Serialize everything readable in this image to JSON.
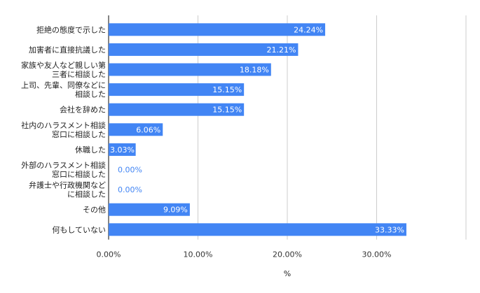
{
  "chart_data": {
    "type": "bar",
    "orientation": "horizontal",
    "categories": [
      [
        "拒絶の態度で示した"
      ],
      [
        "加害者に直接抗議した"
      ],
      [
        "家族や友人など親しい第",
        "三者に相談した"
      ],
      [
        "上司、先輩、同僚などに",
        "相談した"
      ],
      [
        "会社を辞めた"
      ],
      [
        "社内のハラスメント相談",
        "窓口に相談した"
      ],
      [
        "休職した"
      ],
      [
        "外部のハラスメント相談",
        "窓口に相談した"
      ],
      [
        "弁護士や行政機関など",
        "に相談した"
      ],
      [
        "その他"
      ],
      [
        "何もしていない"
      ]
    ],
    "values": [
      24.24,
      21.21,
      18.18,
      15.15,
      15.15,
      6.06,
      3.03,
      0,
      0,
      9.09,
      33.33
    ],
    "value_labels": [
      "24.24%",
      "21.21%",
      "18.18%",
      "15.15%",
      "15.15%",
      "6.06%",
      "3.03%",
      "0.00%",
      "0.00%",
      "9.09%",
      "33.33%"
    ],
    "xlim": [
      0,
      40
    ],
    "xticks": [
      0,
      10,
      20,
      30,
      40
    ],
    "xtick_labels": [
      "0.00%",
      "10.00%",
      "20.00%",
      "30.00%",
      ""
    ],
    "xlabel": "%",
    "grid": true,
    "legend": "none",
    "bar_color": "#4285f4",
    "label_color_inside": "#ffffff",
    "label_color_outside": "#4285f4",
    "grid_color": "#cccccc",
    "axis_color": "#333333"
  }
}
